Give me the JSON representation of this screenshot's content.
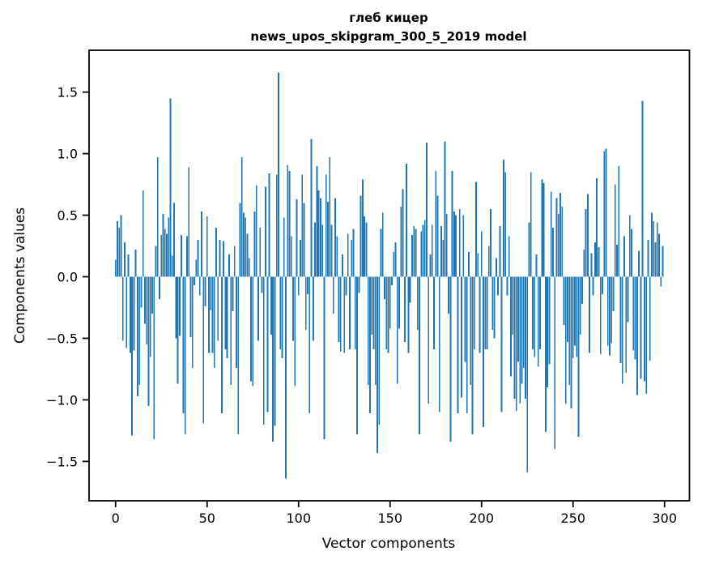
{
  "title": {
    "line1": "глеб кицер",
    "line2": "news_upos_skipgram_300_5_2019 model"
  },
  "axes": {
    "xlabel": "Vector components",
    "ylabel": "Components values",
    "x_tick_labels": [
      "0",
      "50",
      "100",
      "150",
      "200",
      "250",
      "300"
    ],
    "x_tick_values": [
      0,
      50,
      100,
      150,
      200,
      250,
      300
    ],
    "y_tick_labels": [
      "1.5",
      "1.0",
      "0.5",
      "0.0",
      "−0.5",
      "−1.0",
      "−1.5"
    ],
    "y_tick_values": [
      1.5,
      1.0,
      0.5,
      0.0,
      -0.5,
      -1.0,
      -1.5
    ],
    "xlim": [
      -14.5,
      313.6
    ],
    "ylim": [
      -1.82,
      1.84
    ],
    "grid": false,
    "legend": "none"
  },
  "colors": {
    "bar": "#1f77b4",
    "spine": "#000000",
    "text": "#000000",
    "background": "#ffffff"
  },
  "chart_data": {
    "type": "bar",
    "title": "глеб кицер — news_upos_skipgram_300_5_2019 model",
    "xlabel": "Vector components",
    "ylabel": "Components values",
    "x_start": 0,
    "x_step": 1,
    "n_points": 300,
    "values": [
      0.14,
      0.45,
      0.4,
      0.5,
      -0.52,
      0.28,
      -0.58,
      0.18,
      -0.62,
      -1.29,
      -0.6,
      0.22,
      -0.97,
      -0.88,
      -0.25,
      0.7,
      -0.38,
      -0.55,
      -1.05,
      -0.65,
      -0.3,
      -1.32,
      0.25,
      0.97,
      -0.18,
      0.34,
      0.51,
      0.39,
      0.35,
      0.48,
      1.45,
      0.17,
      0.6,
      -0.5,
      -0.87,
      -0.48,
      0.34,
      -1.11,
      -1.28,
      0.33,
      0.89,
      -0.49,
      -0.74,
      -0.07,
      0.14,
      0.3,
      -0.15,
      0.53,
      -1.19,
      -0.24,
      0.49,
      -0.62,
      -0.27,
      -0.62,
      -0.74,
      0.4,
      -0.52,
      0.3,
      -1.11,
      0.29,
      -0.59,
      -0.66,
      0.18,
      -0.88,
      -0.28,
      0.25,
      -0.74,
      -1.28,
      0.6,
      0.97,
      0.52,
      0.48,
      0.35,
      0.15,
      -0.85,
      -0.89,
      0.53,
      0.74,
      -0.52,
      0.4,
      -0.13,
      -1.2,
      0.73,
      -1.1,
      0.84,
      -0.47,
      -1.34,
      -1.21,
      0.83,
      1.66,
      -0.59,
      -0.66,
      0.48,
      -1.64,
      0.91,
      0.86,
      0.33,
      -0.52,
      -0.89,
      0.63,
      -0.15,
      0.3,
      0.83,
      0.6,
      -0.43,
      -0.14,
      -1.11,
      1.12,
      -0.52,
      0.44,
      0.9,
      0.7,
      0.64,
      0.42,
      -1.32,
      0.83,
      0.61,
      0.97,
      0.42,
      -0.3,
      0.64,
      0.33,
      -0.53,
      -0.61,
      0.18,
      -0.62,
      -0.15,
      0.35,
      -0.59,
      0.3,
      0.39,
      -0.59,
      -1.28,
      -0.13,
      0.66,
      0.79,
      0.49,
      0.44,
      -0.88,
      -1.11,
      -0.47,
      -0.59,
      -0.88,
      -1.43,
      -1.2,
      0.39,
      0.52,
      -0.18,
      -0.59,
      -0.62,
      -0.42,
      -0.07,
      0.2,
      0.28,
      -0.87,
      -0.42,
      0.57,
      0.71,
      -0.53,
      0.92,
      -0.62,
      -0.21,
      0.34,
      0.41,
      0.39,
      -0.43,
      -1.28,
      0.37,
      0.42,
      0.46,
      1.09,
      -1.03,
      0.18,
      0.42,
      -0.59,
      0.86,
      0.66,
      -1.1,
      0.41,
      0.3,
      1.1,
      0.51,
      -0.3,
      -1.34,
      0.86,
      0.53,
      0.5,
      -1.11,
      0.55,
      -0.98,
      0.5,
      -0.69,
      -1.11,
      0.2,
      -0.88,
      -1.28,
      -0.59,
      0.77,
      0.19,
      -0.62,
      0.37,
      -1.22,
      -0.59,
      -0.59,
      0.25,
      0.55,
      -0.43,
      -0.5,
      0.15,
      -0.15,
      0.41,
      -1.1,
      0.95,
      0.85,
      -0.15,
      0.33,
      -0.81,
      -0.47,
      -0.99,
      -1.09,
      -0.69,
      -1.03,
      -0.87,
      -0.74,
      -0.99,
      -1.59,
      0.44,
      0.85,
      -0.59,
      -0.65,
      0.18,
      -0.73,
      -0.59,
      0.79,
      0.76,
      -1.26,
      -0.9,
      -0.71,
      0.69,
      0.4,
      -1.4,
      0.64,
      0.51,
      0.68,
      0.57,
      -0.39,
      -1.03,
      -0.53,
      -0.88,
      -1.07,
      -0.66,
      -0.56,
      -0.65,
      -1.3,
      -0.47,
      -0.22,
      0.22,
      0.55,
      0.67,
      -0.62,
      0.19,
      -0.15,
      0.28,
      0.8,
      0.24,
      -0.63,
      -0.14,
      1.02,
      1.04,
      -0.56,
      -0.64,
      -0.54,
      -0.28,
      0.75,
      0.26,
      0.9,
      -0.7,
      -0.87,
      0.33,
      -0.78,
      -0.37,
      0.5,
      0.39,
      -0.6,
      -0.67,
      -0.96,
      0.21,
      -0.83,
      1.43,
      -0.85,
      -0.95,
      0.3,
      -0.68,
      0.52,
      0.45,
      0.28,
      0.44,
      0.35,
      -0.08,
      0.25
    ]
  }
}
